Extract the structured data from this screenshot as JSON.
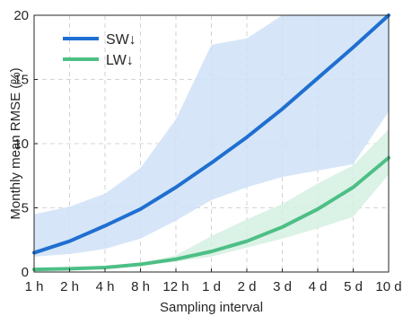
{
  "chart_data": {
    "type": "line",
    "title": "",
    "xlabel": "Sampling interval",
    "ylabel": "Monthly mean RMSE (%)",
    "categories": [
      "1 h",
      "2 h",
      "4 h",
      "8 h",
      "12 h",
      "1 d",
      "2 d",
      "3 d",
      "4 d",
      "5 d",
      "10 d"
    ],
    "ylim": [
      0,
      20
    ],
    "yticks": [
      0,
      5,
      10,
      15,
      20
    ],
    "grid": true,
    "legend_position": "top-left",
    "series": [
      {
        "name": "SW↓",
        "color": "#1f6fd1",
        "band_color": "#cfe2f7",
        "values": [
          1.5,
          2.4,
          3.6,
          4.9,
          6.6,
          8.5,
          10.5,
          12.7,
          15.1,
          17.5,
          20.0
        ],
        "lower": [
          1.2,
          1.4,
          1.8,
          2.6,
          4.0,
          5.6,
          6.6,
          7.4,
          7.9,
          8.4,
          12.5
        ],
        "upper": [
          4.5,
          5.1,
          6.1,
          8.1,
          11.9,
          17.7,
          18.2,
          20.0,
          20.0,
          20.0,
          20.0
        ]
      },
      {
        "name": "LW↓",
        "color": "#4dbf85",
        "band_color": "#d5f0e2",
        "values": [
          0.2,
          0.25,
          0.35,
          0.6,
          1.0,
          1.6,
          2.4,
          3.5,
          4.9,
          6.6,
          8.9
        ],
        "lower": [
          0.15,
          0.2,
          0.3,
          0.5,
          0.8,
          1.2,
          1.9,
          2.6,
          3.4,
          4.3,
          7.6
        ],
        "upper": [
          0.25,
          0.3,
          0.4,
          0.7,
          1.3,
          2.8,
          4.1,
          5.3,
          6.9,
          8.3,
          11.1
        ]
      }
    ]
  }
}
